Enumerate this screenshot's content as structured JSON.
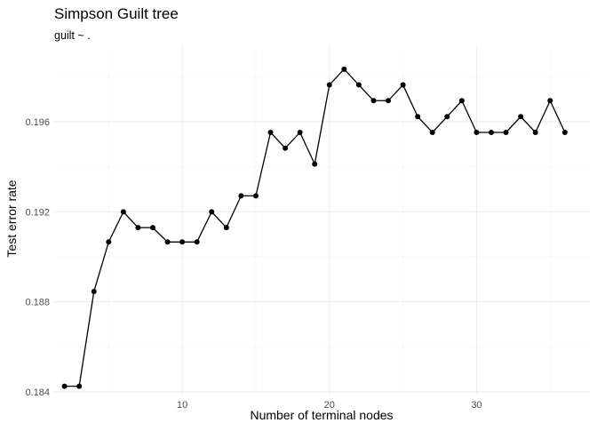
{
  "chart_data": {
    "type": "line",
    "title": "Simpson Guilt tree",
    "subtitle": "guilt ~ .",
    "xlabel": "Number of terminal nodes",
    "ylabel": "Test error rate",
    "xlim": [
      1.3,
      37.7
    ],
    "ylim": [
      0.18388,
      0.19932
    ],
    "x_ticks": [
      10,
      20,
      30
    ],
    "x_tick_labels": [
      "10",
      "20",
      "30"
    ],
    "x_minor": [
      5,
      15,
      25,
      35
    ],
    "y_ticks": [
      0.184,
      0.188,
      0.192,
      0.196
    ],
    "y_tick_labels": [
      "0.184",
      "0.188",
      "0.192",
      "0.196"
    ],
    "y_minor": [
      0.186,
      0.19,
      0.194,
      0.198
    ],
    "grid": true,
    "legend": "none",
    "line_color": "#000000",
    "x": [
      2,
      3,
      4,
      5,
      6,
      7,
      8,
      9,
      10,
      11,
      12,
      13,
      14,
      15,
      16,
      17,
      18,
      19,
      20,
      21,
      22,
      23,
      24,
      25,
      26,
      27,
      28,
      29,
      30,
      31,
      32,
      33,
      34,
      35,
      36
    ],
    "y": [
      0.18425,
      0.18425,
      0.18846,
      0.19066,
      0.192,
      0.1913,
      0.1913,
      0.19066,
      0.19066,
      0.19066,
      0.192,
      0.1913,
      0.19271,
      0.19271,
      0.19553,
      0.19483,
      0.19553,
      0.19412,
      0.19764,
      0.19834,
      0.19764,
      0.19694,
      0.19694,
      0.19764,
      0.19623,
      0.19553,
      0.19623,
      0.19694,
      0.19553,
      0.19553,
      0.19553,
      0.19623,
      0.19553,
      0.19694,
      0.19553
    ]
  }
}
